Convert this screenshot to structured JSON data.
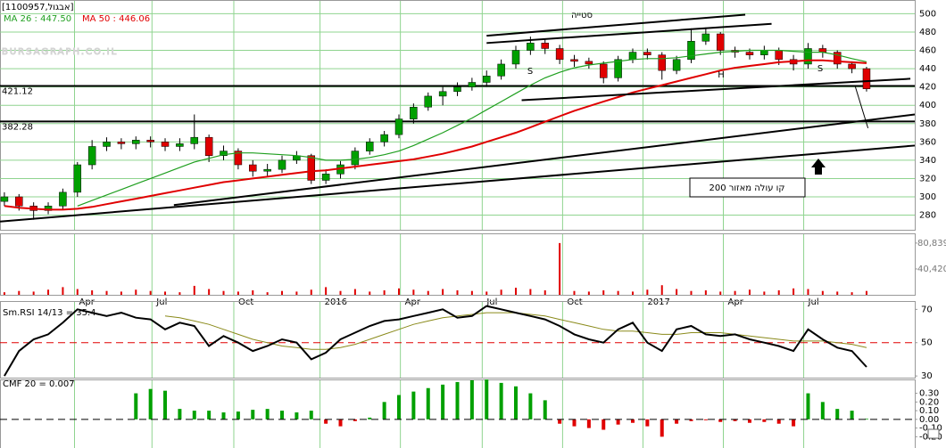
{
  "chart_data": [
    {
      "type": "candlestick",
      "title": "[1100957,אבגול]",
      "watermark": "BURSAGRAPH.CO.IL",
      "xlim": [
        -0.3,
        62.3
      ],
      "xticks": [
        {
          "value": 4.8,
          "label": "Apr"
        },
        {
          "value": 10.1,
          "label": "Jul"
        },
        {
          "value": 15.7,
          "label": "Oct"
        },
        {
          "value": 21.6,
          "label": "2016"
        },
        {
          "value": 27.1,
          "label": "Apr"
        },
        {
          "value": 32.7,
          "label": "Jul"
        },
        {
          "value": 38.2,
          "label": "Oct"
        },
        {
          "value": 43.7,
          "label": "2017"
        },
        {
          "value": 49.2,
          "label": "Apr"
        },
        {
          "value": 54.7,
          "label": "Jul"
        }
      ],
      "ylim": [
        264,
        515
      ],
      "yticks": [
        280,
        300,
        320,
        340,
        360,
        380,
        400,
        420,
        440,
        460,
        480,
        500
      ],
      "grid": true,
      "up_color": "#00a000",
      "down_color": "#e00000",
      "open": [
        295,
        300,
        290,
        285,
        290,
        305,
        335,
        355,
        360,
        358,
        362,
        360,
        355,
        358,
        365,
        345,
        350,
        335,
        328,
        330,
        340,
        345,
        318,
        325,
        335,
        350,
        360,
        368,
        385,
        398,
        410,
        415,
        420,
        425,
        432,
        445,
        460,
        468,
        462,
        450,
        448,
        445,
        430,
        450,
        458,
        455,
        438,
        450,
        470,
        478,
        460,
        458,
        455,
        460,
        450,
        445,
        462,
        458,
        445,
        440
      ],
      "high": [
        305,
        303,
        294,
        294,
        309,
        338,
        362,
        365,
        364,
        366,
        366,
        364,
        364,
        390,
        368,
        356,
        353,
        340,
        336,
        345,
        350,
        347,
        330,
        339,
        354,
        364,
        372,
        390,
        402,
        414,
        420,
        425,
        430,
        438,
        450,
        465,
        475,
        472,
        466,
        455,
        452,
        448,
        454,
        462,
        462,
        458,
        454,
        484,
        485,
        480,
        464,
        462,
        465,
        463,
        455,
        468,
        466,
        460,
        448,
        442
      ],
      "low": [
        290,
        285,
        275,
        281,
        286,
        300,
        330,
        350,
        352,
        352,
        354,
        350,
        350,
        352,
        338,
        340,
        330,
        322,
        322,
        326,
        336,
        314,
        314,
        320,
        330,
        346,
        355,
        364,
        380,
        394,
        400,
        410,
        416,
        420,
        428,
        440,
        455,
        456,
        445,
        442,
        440,
        424,
        426,
        446,
        450,
        428,
        434,
        446,
        466,
        455,
        452,
        450,
        450,
        444,
        438,
        440,
        452,
        440,
        435,
        415
      ],
      "close": [
        300,
        290,
        285,
        290,
        305,
        335,
        355,
        360,
        358,
        362,
        360,
        355,
        358,
        365,
        345,
        350,
        335,
        328,
        330,
        340,
        345,
        318,
        325,
        335,
        350,
        360,
        368,
        385,
        398,
        410,
        415,
        420,
        425,
        432,
        445,
        460,
        468,
        462,
        450,
        448,
        445,
        430,
        450,
        458,
        455,
        438,
        450,
        470,
        478,
        460,
        458,
        455,
        460,
        450,
        445,
        462,
        458,
        445,
        440,
        418
      ],
      "series": [
        {
          "name": "MA 26 : 447.50",
          "color": "#1f9f1f",
          "values": [
            null,
            null,
            null,
            null,
            null,
            290,
            296,
            302,
            308,
            314,
            320,
            326,
            332,
            338,
            342,
            346,
            348,
            348,
            347,
            346,
            345,
            343,
            340,
            340,
            341,
            343,
            346,
            350,
            356,
            363,
            370,
            378,
            386,
            395,
            404,
            413,
            422,
            430,
            436,
            441,
            444,
            446,
            448,
            450,
            451,
            451,
            452,
            454,
            456,
            458,
            459,
            460,
            460,
            460,
            459,
            458,
            458,
            455,
            451,
            447.5
          ]
        },
        {
          "name": "MA 50 : 446.06",
          "color": "#e00000",
          "values": [
            290,
            288,
            287,
            286,
            286,
            287,
            289,
            292,
            295,
            298,
            301,
            304,
            307,
            310,
            313,
            316,
            318,
            320,
            322,
            324,
            326,
            328,
            329,
            331,
            333,
            335,
            337,
            339,
            341,
            344,
            347,
            351,
            355,
            360,
            365,
            370,
            376,
            382,
            388,
            394,
            399,
            404,
            409,
            414,
            418,
            422,
            426,
            430,
            434,
            438,
            441,
            443,
            445,
            447,
            448,
            449,
            449,
            448,
            447,
            446.06
          ]
        }
      ],
      "levels": [
        421.12,
        382.28
      ],
      "trendlines": [
        [
          [
            -0.3,
            273
          ],
          [
            62.3,
            356
          ]
        ],
        [
          [
            11.6,
            291
          ],
          [
            62.3,
            390
          ]
        ],
        [
          [
            33.0,
            476
          ],
          [
            50.7,
            499
          ]
        ],
        [
          [
            33.0,
            468
          ],
          [
            52.5,
            489
          ]
        ],
        [
          [
            35.4,
            405.5
          ],
          [
            62.0,
            429
          ]
        ],
        [
          [
            58.2,
            422
          ],
          [
            59.1,
            375
          ]
        ]
      ],
      "annotations": [
        "סטייה",
        "S",
        "H",
        "S",
        "קו עולה מאזור 200"
      ],
      "volume": {
        "color": "#e00000",
        "ylim": [
          0,
          96000
        ],
        "yticks": [
          {
            "value": 80839,
            "label": "80,839"
          },
          {
            "value": 40420,
            "label": "40,420"
          }
        ],
        "values": [
          4000,
          6000,
          5000,
          8000,
          12000,
          9000,
          7000,
          6000,
          5000,
          8000,
          6000,
          5000,
          4000,
          14000,
          9000,
          6000,
          5000,
          7000,
          4000,
          6000,
          5000,
          8000,
          12000,
          6000,
          9000,
          5000,
          7000,
          10000,
          8000,
          6000,
          9000,
          7000,
          6000,
          5000,
          8000,
          11000,
          9000,
          7000,
          80839,
          6000,
          5000,
          7000,
          6000,
          5000,
          8000,
          15000,
          9000,
          6000,
          7000,
          5000,
          6000,
          8000,
          5000,
          7000,
          10000,
          9000,
          6000,
          5000,
          4000,
          6000
        ]
      }
    },
    {
      "type": "line",
      "title": "Sm.RSI 14/13 = 35.4",
      "ylim": [
        29,
        75
      ],
      "yticks": [
        30,
        50,
        70
      ],
      "reference": 50,
      "reference_color": "#e00000",
      "series": [
        {
          "color": "#000000",
          "values": [
            30,
            45,
            52,
            55,
            62,
            70,
            68,
            66,
            68,
            65,
            64,
            58,
            62,
            60,
            48,
            54,
            50,
            45,
            48,
            52,
            50,
            40,
            44,
            52,
            56,
            60,
            63,
            64,
            66,
            68,
            70,
            65,
            66,
            72,
            70,
            68,
            66,
            64,
            60,
            55,
            52,
            50,
            58,
            62,
            50,
            45,
            58,
            60,
            55,
            54,
            55,
            52,
            50,
            48,
            45,
            58,
            52,
            47,
            45,
            35.4
          ]
        },
        {
          "color": "#8a8a1a",
          "values": [
            null,
            null,
            null,
            null,
            null,
            null,
            null,
            null,
            null,
            null,
            null,
            66,
            65,
            63,
            61,
            58,
            55,
            52,
            50,
            48,
            47,
            46,
            46,
            47,
            49,
            52,
            55,
            58,
            61,
            63,
            65,
            66,
            67,
            68,
            68,
            68,
            67,
            66,
            64,
            62,
            60,
            58,
            57,
            57,
            56,
            55,
            55,
            56,
            56,
            56,
            55,
            54,
            53,
            52,
            51,
            51,
            51,
            50,
            49,
            47
          ]
        }
      ]
    },
    {
      "type": "bar",
      "title": "CMF 20 = 0.007",
      "ylim": [
        -0.33,
        0.46
      ],
      "reference": 0,
      "reference_color": "#000000",
      "yticks": [
        {
          "value": 0.3,
          "label": "0.30"
        },
        {
          "value": 0.2,
          "label": "0.20"
        },
        {
          "value": 0.1,
          "label": "0.10"
        },
        {
          "value": 0,
          "label": "0.00"
        },
        {
          "value": -0.1,
          "label": "-0.10"
        },
        {
          "value": -0.2,
          "label": "-0.20"
        }
      ],
      "pos_color": "#00a000",
      "neg_color": "#e00000",
      "values": [
        null,
        null,
        null,
        null,
        null,
        null,
        null,
        null,
        null,
        0.3,
        0.35,
        0.33,
        0.12,
        0.1,
        0.1,
        0.08,
        0.09,
        0.11,
        0.12,
        0.1,
        0.08,
        0.1,
        -0.05,
        -0.08,
        -0.02,
        0.02,
        0.2,
        0.28,
        0.32,
        0.36,
        0.4,
        0.43,
        0.45,
        0.46,
        0.42,
        0.38,
        0.3,
        0.22,
        -0.05,
        -0.08,
        -0.1,
        -0.12,
        -0.06,
        -0.04,
        -0.08,
        -0.2,
        -0.05,
        -0.02,
        -0.01,
        -0.03,
        -0.02,
        -0.04,
        -0.03,
        -0.05,
        -0.08,
        0.3,
        0.2,
        0.12,
        0.1,
        0.007
      ]
    }
  ]
}
